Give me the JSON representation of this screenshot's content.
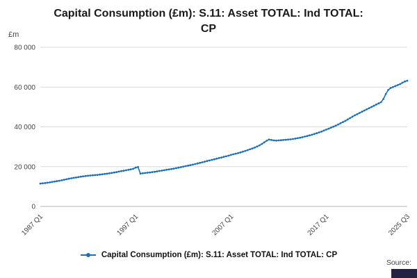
{
  "title": "Capital Consumption (£m): S.11: Asset TOTAL: Ind TOTAL: CP",
  "title_lines": [
    "Capital Consumption (£m): S.11: Asset TOTAL: Ind TOTAL:",
    "CP"
  ],
  "unit_label": "£m",
  "source_label": "Source:",
  "legend": {
    "label": "Capital Consumption (£m): S.11: Asset TOTAL: Ind TOTAL: CP"
  },
  "colors": {
    "line": "#1d70b8",
    "grid": "#d9d9d9",
    "axis": "#b3b3b3",
    "text": "#444444",
    "logo_bg": "#232244"
  },
  "chart_data": {
    "type": "line",
    "title": "Capital Consumption (£m): S.11: Asset TOTAL: Ind TOTAL: CP",
    "xlabel": "",
    "ylabel": "£m",
    "ylim": [
      0,
      80000
    ],
    "yticks": [
      0,
      20000,
      40000,
      60000,
      80000
    ],
    "ytick_labels": [
      "0",
      "20 000",
      "40 000",
      "60 000",
      "80 000"
    ],
    "x_start": "1987 Q1",
    "x_end": "2025 Q3",
    "frequency": "quarterly",
    "xtick_labels": [
      "1987 Q1",
      "1997 Q1",
      "2007 Q1",
      "2017 Q1",
      "2025 Q3"
    ],
    "xtick_indices": [
      0,
      40,
      80,
      120,
      154
    ],
    "grid": "horizontal",
    "legend_position": "bottom",
    "marker": "circle",
    "series": [
      {
        "name": "Capital Consumption (£m): S.11: Asset TOTAL: Ind TOTAL: CP",
        "values": [
          11500,
          11600,
          11750,
          11900,
          12100,
          12300,
          12500,
          12700,
          12900,
          13150,
          13400,
          13650,
          13900,
          14150,
          14350,
          14550,
          14750,
          14950,
          15100,
          15250,
          15400,
          15550,
          15650,
          15750,
          15850,
          16000,
          16150,
          16300,
          16450,
          16650,
          16850,
          17050,
          17250,
          17500,
          17750,
          17950,
          18150,
          18400,
          18650,
          18900,
          19500,
          19800,
          16500,
          16650,
          16800,
          16950,
          17100,
          17250,
          17400,
          17600,
          17800,
          18000,
          18200,
          18400,
          18600,
          18800,
          19000,
          19250,
          19500,
          19750,
          20000,
          20250,
          20500,
          20750,
          21000,
          21300,
          21600,
          21900,
          22200,
          22500,
          22800,
          23100,
          23400,
          23700,
          24000,
          24300,
          24600,
          24900,
          25200,
          25500,
          25900,
          26200,
          26500,
          26800,
          27100,
          27500,
          27900,
          28300,
          28700,
          29100,
          29600,
          30100,
          30700,
          31400,
          32200,
          33000,
          33600,
          33400,
          33200,
          33100,
          33200,
          33300,
          33400,
          33500,
          33600,
          33700,
          33900,
          34100,
          34300,
          34500,
          34800,
          35100,
          35400,
          35700,
          36000,
          36400,
          36800,
          37200,
          37600,
          38100,
          38600,
          39100,
          39600,
          40100,
          40600,
          41200,
          41800,
          42400,
          43000,
          43700,
          44400,
          45100,
          45800,
          46400,
          47000,
          47600,
          48200,
          48800,
          49400,
          50000,
          50600,
          51200,
          51800,
          52400,
          54000,
          56500,
          58500,
          59500,
          60000,
          60500,
          61000,
          61500,
          62200,
          62800,
          63200
        ]
      }
    ]
  }
}
